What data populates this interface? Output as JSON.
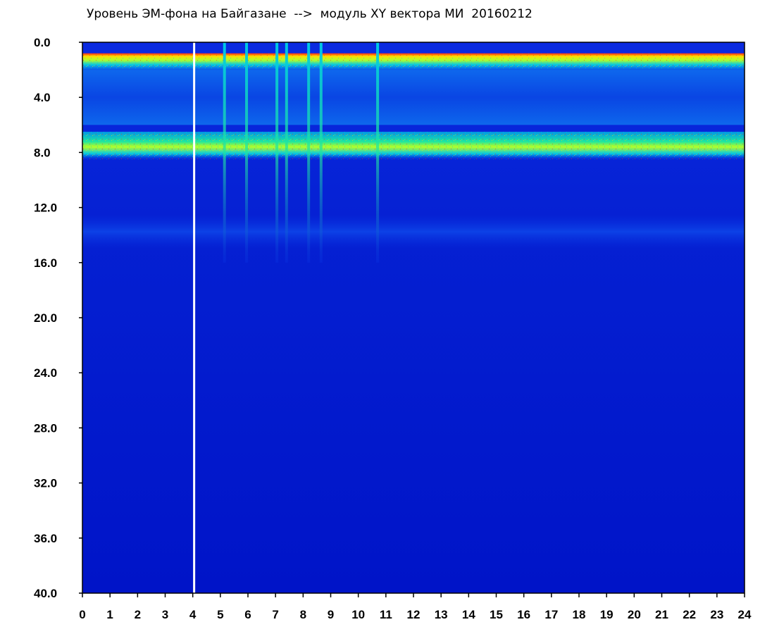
{
  "chart_data": {
    "type": "heatmap",
    "title": "Уровень ЭМ-фона на Байгазане  -->  модуль XY вектора МИ  20160212",
    "xlabel": "",
    "ylabel": "",
    "x_range": [
      0,
      24
    ],
    "y_range": [
      0.0,
      40.0
    ],
    "y_inverted": true,
    "grid": false,
    "x_ticks": [
      "0",
      "1",
      "2",
      "3",
      "4",
      "5",
      "6",
      "7",
      "8",
      "9",
      "10",
      "11",
      "12",
      "13",
      "14",
      "15",
      "16",
      "17",
      "18",
      "19",
      "20",
      "21",
      "22",
      "23",
      "24"
    ],
    "y_ticks": [
      "0.0",
      "4.0",
      "8.0",
      "12.0",
      "16.0",
      "20.0",
      "24.0",
      "28.0",
      "32.0",
      "36.0",
      "40.0"
    ],
    "colormap": [
      "#0000c8",
      "#0a35e6",
      "#0f73f0",
      "#00c8e6",
      "#1ee6a0",
      "#b4ff28",
      "#ffdc00",
      "#ff2814"
    ],
    "bands": [
      {
        "y_from": 0.8,
        "y_to": 2.0,
        "level": "high"
      },
      {
        "y_from": 2.0,
        "y_to": 6.0,
        "level": "medium"
      },
      {
        "y_from": 6.5,
        "y_to": 8.5,
        "level": "high"
      },
      {
        "y_from": 12.5,
        "y_to": 15.0,
        "level": "low"
      },
      {
        "y_from": 15.0,
        "y_to": 40.0,
        "level": "background"
      }
    ],
    "gaps_hours": [
      4.05
    ],
    "streaks_hours": [
      5.15,
      5.95,
      7.05,
      7.4,
      8.2,
      8.65,
      10.7
    ]
  }
}
